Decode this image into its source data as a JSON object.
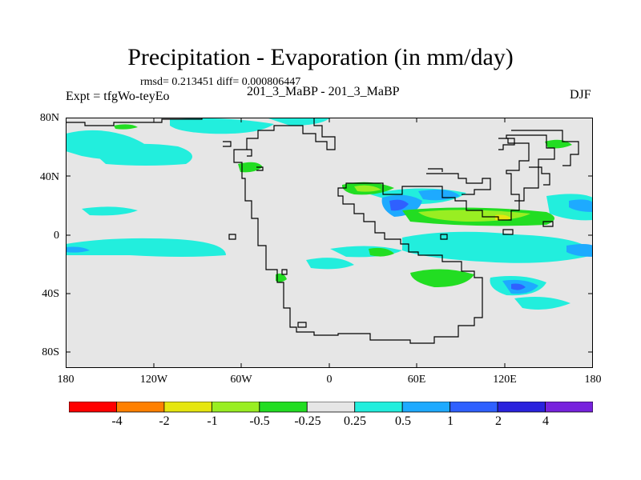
{
  "header": {
    "title": "Precipitation - Evaporation (in mm/day)",
    "stats": "rmsd= 0.213451 diff= 0.000806447",
    "expt": "Expt = tfgWo-teyEo",
    "subtitle": "201_3_MaBP - 201_3_MaBP",
    "season": "DJF"
  },
  "map": {
    "lat_labels": [
      "80N",
      "40N",
      "0",
      "40S",
      "80S"
    ],
    "lon_labels": [
      "180",
      "120W",
      "60W",
      "0",
      "60E",
      "120E",
      "180"
    ]
  },
  "colorbar": {
    "labels": [
      "-4",
      "-2",
      "-1",
      "-0.5",
      "-0.25",
      "0.25",
      "0.5",
      "1",
      "2",
      "4"
    ],
    "colors": [
      "#ff0000",
      "#ff8000",
      "#e6e60f",
      "#99ee22",
      "#22dd22",
      "#e6e6e6",
      "#22eedd",
      "#1eaaff",
      "#2f60ff",
      "#2a22dd",
      "#7722dd"
    ]
  },
  "colors": {
    "background": "#e6e6e6",
    "coast": "#000000",
    "frame": "#000000"
  }
}
